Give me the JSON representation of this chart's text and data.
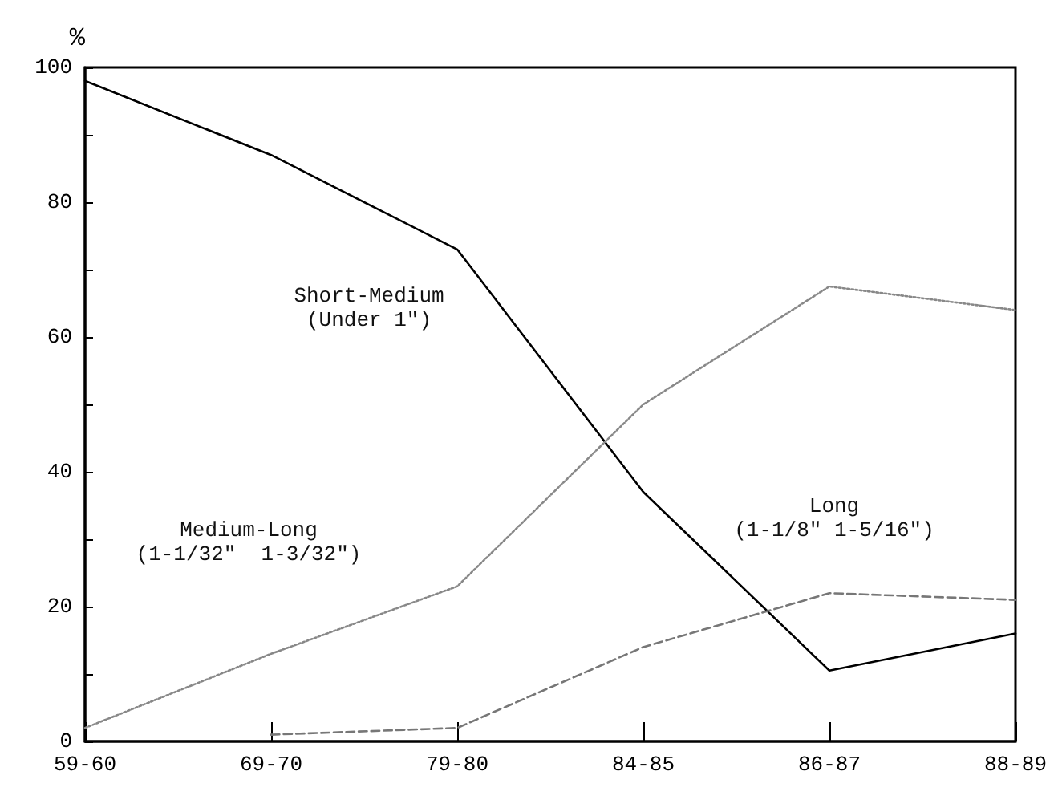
{
  "chart_data": {
    "type": "line",
    "ylabel": "%",
    "categories": [
      "59-60",
      "69-70",
      "79-80",
      "84-85",
      "86-87",
      "88-89"
    ],
    "ylim": [
      0,
      100
    ],
    "yticks": [
      0,
      {
        "value": 10,
        "label": null
      },
      20,
      {
        "value": 30,
        "label": null
      },
      40,
      {
        "value": 50,
        "label": null
      },
      60,
      {
        "value": 70,
        "label": null
      },
      80,
      {
        "value": 90,
        "label": null
      },
      100
    ],
    "grid": false,
    "marker": "none",
    "series": [
      {
        "color": "#000000",
        "line_style": "solid",
        "values": [
          98,
          87,
          73,
          37,
          10.5,
          16
        ]
      },
      {
        "color": "#888888",
        "line_style": "dotted",
        "values": [
          2,
          13,
          23,
          50,
          67.5,
          64
        ]
      },
      {
        "color": "#777777",
        "line_style": "dashed",
        "values": [
          null,
          1,
          2,
          14,
          22,
          21
        ]
      }
    ],
    "annotations": [
      "Short-Medium\n(Under 1\")",
      "Medium-Long\n(1-1/32\"  1-3/32\")",
      "Long\n(1-1/8\" 1-5/16\")"
    ]
  }
}
